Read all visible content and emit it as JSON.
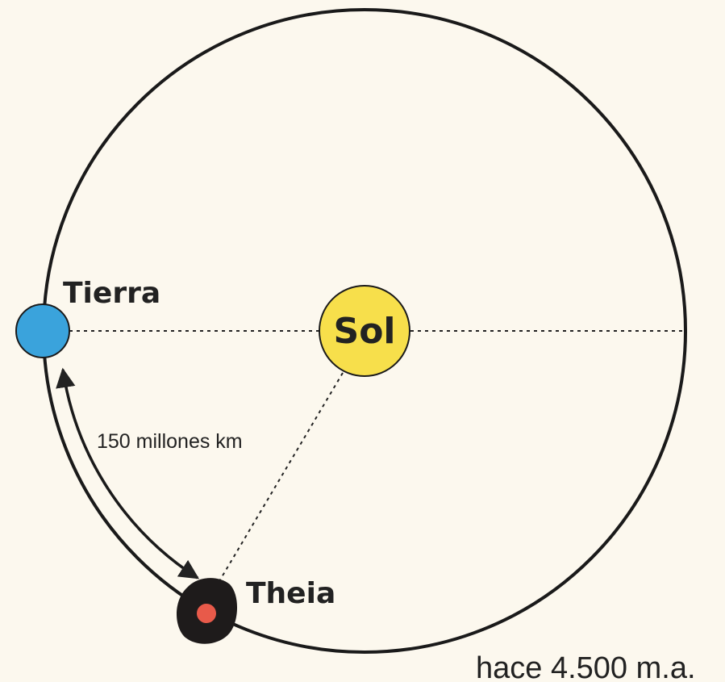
{
  "labels": {
    "earth": "Tierra",
    "sun": "Sol",
    "theia": "Theia",
    "distance": "150 millones km",
    "caption": "hace 4.500 m.a."
  }
}
